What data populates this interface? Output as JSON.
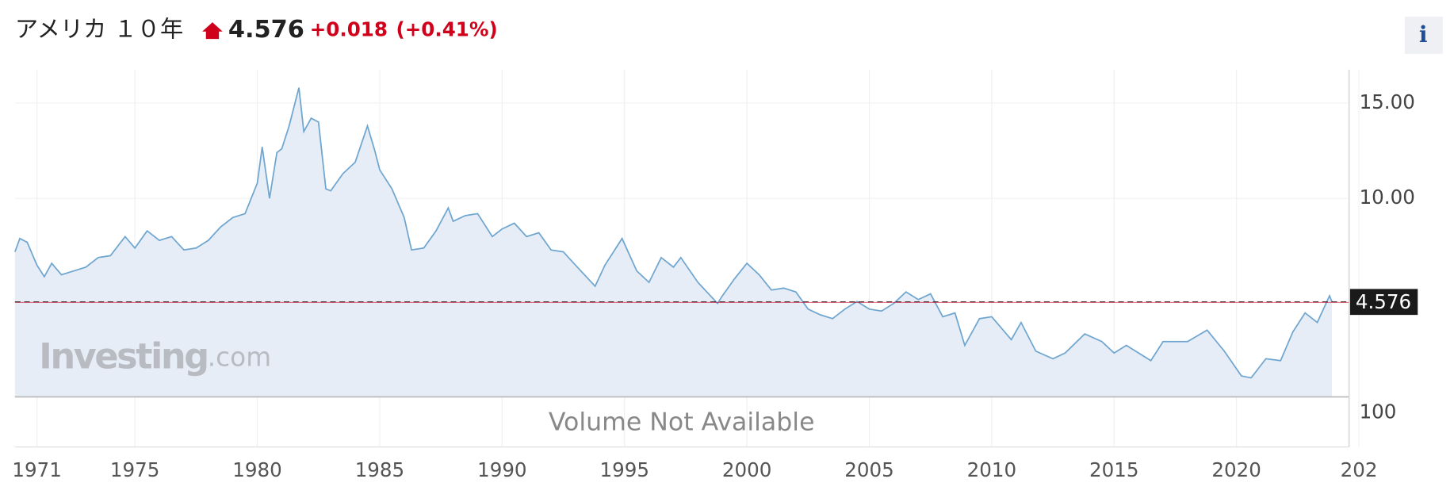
{
  "header": {
    "title": "アメリカ １０年",
    "change": "+0.018",
    "change_pct": "(+0.41%)",
    "info": "i"
  },
  "chart_data": {
    "type": "area",
    "x": [
      1970.1,
      1970.3,
      1970.6,
      1971.0,
      1971.3,
      1971.6,
      1972.0,
      1972.5,
      1973.0,
      1973.5,
      1974.0,
      1974.6,
      1975.0,
      1975.5,
      1976.0,
      1976.5,
      1977.0,
      1977.5,
      1978.0,
      1978.5,
      1979.0,
      1979.5,
      1980.0,
      1980.2,
      1980.5,
      1980.8,
      1981.0,
      1981.3,
      1981.7,
      1981.9,
      1982.2,
      1982.5,
      1982.8,
      1983.0,
      1983.5,
      1984.0,
      1984.5,
      1984.8,
      1985.0,
      1985.5,
      1986.0,
      1986.3,
      1986.8,
      1987.3,
      1987.8,
      1988.0,
      1988.5,
      1989.0,
      1989.6,
      1990.0,
      1990.5,
      1991.0,
      1991.5,
      1992.0,
      1992.5,
      1993.0,
      1993.8,
      1994.2,
      1994.9,
      1995.5,
      1996.0,
      1996.5,
      1997.0,
      1997.3,
      1998.0,
      1998.8,
      1999.0,
      1999.5,
      2000.0,
      2000.5,
      2001.0,
      2001.5,
      2002.0,
      2002.5,
      2003.0,
      2003.5,
      2004.0,
      2004.5,
      2005.0,
      2005.5,
      2006.0,
      2006.5,
      2007.0,
      2007.5,
      2008.0,
      2008.5,
      2008.9,
      2009.5,
      2010.0,
      2010.8,
      2011.2,
      2011.8,
      2012.5,
      2013.0,
      2013.8,
      2014.5,
      2015.0,
      2015.5,
      2016.5,
      2017.0,
      2018.0,
      2018.8,
      2019.5,
      2020.2,
      2020.6,
      2021.2,
      2021.8,
      2022.3,
      2022.8,
      2023.3,
      2023.8,
      2023.9
    ],
    "values": [
      7.2,
      7.9,
      7.7,
      6.5,
      5.9,
      6.6,
      6.0,
      6.2,
      6.4,
      6.9,
      7.0,
      8.0,
      7.4,
      8.3,
      7.8,
      8.0,
      7.3,
      7.4,
      7.8,
      8.5,
      9.0,
      9.2,
      10.8,
      12.7,
      10.0,
      12.4,
      12.6,
      13.8,
      15.8,
      13.5,
      14.2,
      14.0,
      10.5,
      10.4,
      11.3,
      11.9,
      13.8,
      12.5,
      11.5,
      10.5,
      9.0,
      7.3,
      7.4,
      8.3,
      9.5,
      8.8,
      9.1,
      9.2,
      8.0,
      8.4,
      8.7,
      8.0,
      8.2,
      7.3,
      7.2,
      6.5,
      5.4,
      6.5,
      7.9,
      6.2,
      5.6,
      6.9,
      6.4,
      6.9,
      5.6,
      4.5,
      4.9,
      5.8,
      6.6,
      6.0,
      5.2,
      5.3,
      5.1,
      4.2,
      3.9,
      3.7,
      4.2,
      4.6,
      4.2,
      4.1,
      4.5,
      5.1,
      4.7,
      5.0,
      3.8,
      4.0,
      2.3,
      3.7,
      3.8,
      2.6,
      3.5,
      2.0,
      1.6,
      1.9,
      2.9,
      2.5,
      1.9,
      2.3,
      1.5,
      2.5,
      2.5,
      3.1,
      2.0,
      0.7,
      0.6,
      1.6,
      1.5,
      3.0,
      4.0,
      3.5,
      4.9,
      4.576
    ],
    "color": "#6fa6d0",
    "fill": "#e6edf6",
    "xlim": [
      1970.1,
      2024.6
    ],
    "xticks": [
      1971,
      1975,
      1980,
      1985,
      1990,
      1995,
      2000,
      2005,
      2010,
      2015,
      2020,
      {
        "value": 2025,
        "label": "202"
      }
    ],
    "ylim": [
      -0.4,
      16.75
    ],
    "yticks": [
      {
        "value": 10,
        "label": "10.00"
      },
      {
        "value": 15,
        "label": "15.00"
      }
    ],
    "grid": true,
    "volume_text": "Volume Not Available",
    "volume_tick": "100",
    "watermark": "Investing",
    "watermark_suffix": ".com"
  }
}
